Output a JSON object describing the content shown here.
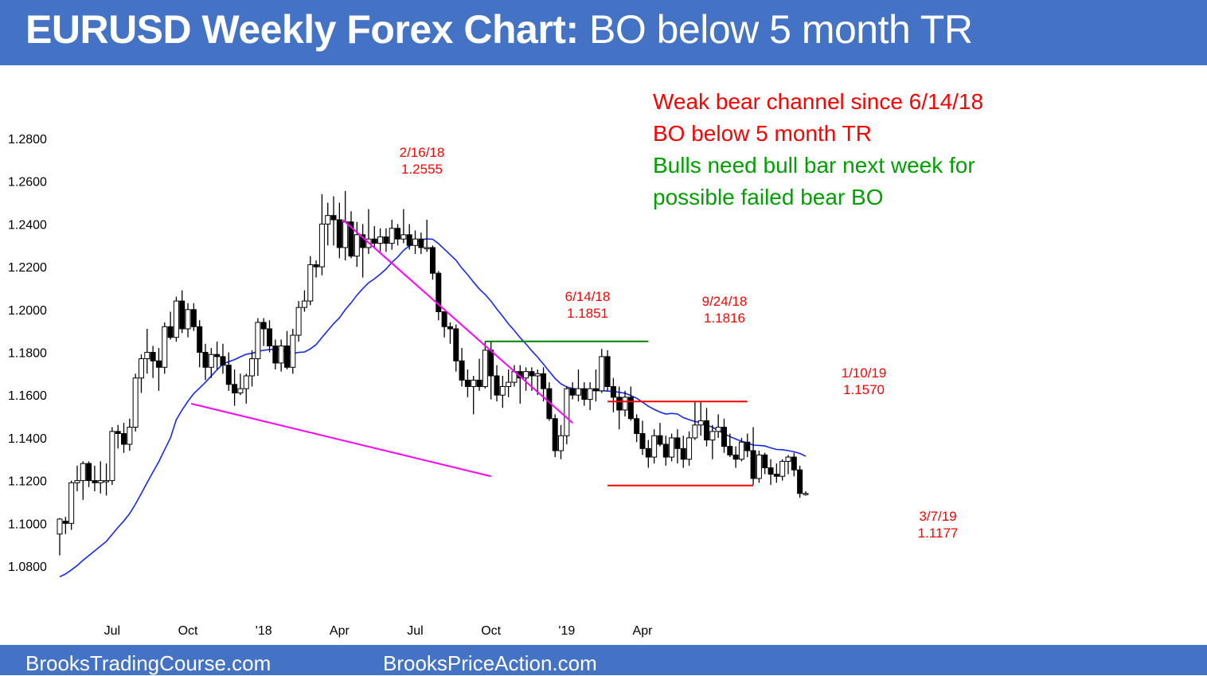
{
  "header": {
    "title_bold": "EURUSD Weekly Forex Chart:",
    "title_rest": " BO below 5 month TR"
  },
  "footer": {
    "left": "BrooksTradingCourse.com",
    "right": "BrooksPriceAction.com"
  },
  "notes": [
    {
      "text": "Weak bear channel since 6/14/18",
      "color": "#ff0000"
    },
    {
      "text": "BO below 5 month TR",
      "color": "#ff0000"
    },
    {
      "text": "Bulls need bull bar next week for",
      "color": "#00a000"
    },
    {
      "text": "possible failed bear BO",
      "color": "#00a000"
    }
  ],
  "chart_data": {
    "type": "candlestick",
    "title": "EURUSD Weekly Forex Chart",
    "ylim": [
      1.075,
      1.285
    ],
    "y_ticks": [
      "1.0800",
      "1.1000",
      "1.1200",
      "1.1400",
      "1.1600",
      "1.1800",
      "1.2000",
      "1.2200",
      "1.2400",
      "1.2600",
      "1.2800"
    ],
    "x_ticks": [
      "Jul",
      "Oct",
      "'18",
      "Apr",
      "Jul",
      "Oct",
      "'19",
      "Apr"
    ],
    "x_tick_index": [
      9,
      22,
      35,
      48,
      61,
      74,
      87,
      100
    ],
    "candles": [
      [
        1.095,
        1.1025,
        1.085,
        1.102
      ],
      [
        1.101,
        1.103,
        1.095,
        1.1
      ],
      [
        1.1,
        1.12,
        1.097,
        1.119
      ],
      [
        1.119,
        1.127,
        1.115,
        1.12
      ],
      [
        1.12,
        1.129,
        1.111,
        1.128
      ],
      [
        1.128,
        1.129,
        1.117,
        1.12
      ],
      [
        1.12,
        1.127,
        1.115,
        1.119
      ],
      [
        1.119,
        1.129,
        1.114,
        1.12
      ],
      [
        1.12,
        1.128,
        1.113,
        1.12
      ],
      [
        1.12,
        1.145,
        1.118,
        1.143
      ],
      [
        1.143,
        1.146,
        1.135,
        1.142
      ],
      [
        1.142,
        1.147,
        1.133,
        1.137
      ],
      [
        1.137,
        1.149,
        1.134,
        1.145
      ],
      [
        1.145,
        1.17,
        1.143,
        1.168
      ],
      [
        1.168,
        1.179,
        1.161,
        1.177
      ],
      [
        1.177,
        1.191,
        1.17,
        1.18
      ],
      [
        1.18,
        1.183,
        1.168,
        1.176
      ],
      [
        1.176,
        1.182,
        1.162,
        1.173
      ],
      [
        1.173,
        1.194,
        1.17,
        1.192
      ],
      [
        1.192,
        1.199,
        1.186,
        1.187
      ],
      [
        1.187,
        1.206,
        1.185,
        1.204
      ],
      [
        1.204,
        1.209,
        1.189,
        1.191
      ],
      [
        1.191,
        1.203,
        1.187,
        1.2
      ],
      [
        1.2,
        1.203,
        1.19,
        1.192
      ],
      [
        1.192,
        1.195,
        1.173,
        1.18
      ],
      [
        1.18,
        1.184,
        1.167,
        1.173
      ],
      [
        1.173,
        1.182,
        1.168,
        1.179
      ],
      [
        1.179,
        1.185,
        1.172,
        1.178
      ],
      [
        1.178,
        1.184,
        1.17,
        1.174
      ],
      [
        1.174,
        1.18,
        1.162,
        1.165
      ],
      [
        1.165,
        1.172,
        1.155,
        1.161
      ],
      [
        1.161,
        1.17,
        1.16,
        1.163
      ],
      [
        1.163,
        1.17,
        1.156,
        1.169
      ],
      [
        1.169,
        1.181,
        1.164,
        1.177
      ],
      [
        1.177,
        1.196,
        1.169,
        1.194
      ],
      [
        1.194,
        1.196,
        1.183,
        1.191
      ],
      [
        1.191,
        1.195,
        1.18,
        1.183
      ],
      [
        1.183,
        1.186,
        1.172,
        1.175
      ],
      [
        1.175,
        1.186,
        1.171,
        1.183
      ],
      [
        1.183,
        1.19,
        1.172,
        1.173
      ],
      [
        1.173,
        1.191,
        1.17,
        1.188
      ],
      [
        1.188,
        1.204,
        1.185,
        1.201
      ],
      [
        1.201,
        1.209,
        1.199,
        1.204
      ],
      [
        1.204,
        1.225,
        1.202,
        1.221
      ],
      [
        1.221,
        1.223,
        1.215,
        1.22
      ],
      [
        1.22,
        1.254,
        1.216,
        1.24
      ],
      [
        1.24,
        1.25,
        1.23,
        1.244
      ],
      [
        1.244,
        1.253,
        1.23,
        1.242
      ],
      [
        1.242,
        1.25,
        1.224,
        1.229
      ],
      [
        1.229,
        1.2555,
        1.223,
        1.241
      ],
      [
        1.241,
        1.246,
        1.224,
        1.225
      ],
      [
        1.225,
        1.241,
        1.22,
        1.235
      ],
      [
        1.235,
        1.24,
        1.215,
        1.229
      ],
      [
        1.229,
        1.247,
        1.226,
        1.233
      ],
      [
        1.233,
        1.239,
        1.229,
        1.231
      ],
      [
        1.231,
        1.238,
        1.227,
        1.234
      ],
      [
        1.234,
        1.238,
        1.227,
        1.231
      ],
      [
        1.231,
        1.242,
        1.228,
        1.238
      ],
      [
        1.238,
        1.24,
        1.23,
        1.233
      ],
      [
        1.233,
        1.247,
        1.231,
        1.235
      ],
      [
        1.235,
        1.24,
        1.228,
        1.23
      ],
      [
        1.23,
        1.237,
        1.226,
        1.233
      ],
      [
        1.233,
        1.236,
        1.226,
        1.229
      ],
      [
        1.229,
        1.242,
        1.227,
        1.229
      ],
      [
        1.229,
        1.23,
        1.214,
        1.217
      ],
      [
        1.217,
        1.218,
        1.195,
        1.199
      ],
      [
        1.199,
        1.199,
        1.187,
        1.192
      ],
      [
        1.192,
        1.194,
        1.184,
        1.191
      ],
      [
        1.191,
        1.193,
        1.171,
        1.176
      ],
      [
        1.176,
        1.182,
        1.164,
        1.167
      ],
      [
        1.167,
        1.172,
        1.159,
        1.164
      ],
      [
        1.164,
        1.169,
        1.151,
        1.167
      ],
      [
        1.167,
        1.177,
        1.162,
        1.164
      ],
      [
        1.164,
        1.1851,
        1.163,
        1.181
      ],
      [
        1.181,
        1.185,
        1.158,
        1.169
      ],
      [
        1.169,
        1.174,
        1.157,
        1.16
      ],
      [
        1.16,
        1.169,
        1.154,
        1.164
      ],
      [
        1.164,
        1.172,
        1.159,
        1.166
      ],
      [
        1.166,
        1.174,
        1.164,
        1.171
      ],
      [
        1.171,
        1.174,
        1.156,
        1.168
      ],
      [
        1.168,
        1.173,
        1.162,
        1.171
      ],
      [
        1.171,
        1.173,
        1.162,
        1.169
      ],
      [
        1.169,
        1.172,
        1.16,
        1.17
      ],
      [
        1.17,
        1.173,
        1.157,
        1.163
      ],
      [
        1.163,
        1.166,
        1.148,
        1.149
      ],
      [
        1.149,
        1.151,
        1.131,
        1.134
      ],
      [
        1.134,
        1.146,
        1.13,
        1.141
      ],
      [
        1.141,
        1.164,
        1.137,
        1.163
      ],
      [
        1.163,
        1.166,
        1.158,
        1.16
      ],
      [
        1.16,
        1.172,
        1.157,
        1.163
      ],
      [
        1.163,
        1.166,
        1.155,
        1.158
      ],
      [
        1.158,
        1.166,
        1.153,
        1.163
      ],
      [
        1.163,
        1.172,
        1.157,
        1.162
      ],
      [
        1.162,
        1.1816,
        1.161,
        1.178
      ],
      [
        1.178,
        1.181,
        1.162,
        1.164
      ],
      [
        1.164,
        1.168,
        1.152,
        1.159
      ],
      [
        1.159,
        1.164,
        1.144,
        1.153
      ],
      [
        1.153,
        1.162,
        1.15,
        1.159
      ],
      [
        1.159,
        1.164,
        1.148,
        1.149
      ],
      [
        1.149,
        1.151,
        1.138,
        1.142
      ],
      [
        1.142,
        1.148,
        1.132,
        1.135
      ],
      [
        1.135,
        1.139,
        1.126,
        1.131
      ],
      [
        1.131,
        1.144,
        1.128,
        1.141
      ],
      [
        1.141,
        1.147,
        1.136,
        1.137
      ],
      [
        1.137,
        1.141,
        1.127,
        1.131
      ],
      [
        1.131,
        1.142,
        1.129,
        1.14
      ],
      [
        1.14,
        1.144,
        1.128,
        1.135
      ],
      [
        1.135,
        1.141,
        1.126,
        1.13
      ],
      [
        1.13,
        1.143,
        1.127,
        1.14
      ],
      [
        1.14,
        1.157,
        1.139,
        1.146
      ],
      [
        1.146,
        1.157,
        1.141,
        1.148
      ],
      [
        1.148,
        1.154,
        1.136,
        1.139
      ],
      [
        1.139,
        1.146,
        1.13,
        1.143
      ],
      [
        1.143,
        1.151,
        1.14,
        1.145
      ],
      [
        1.145,
        1.149,
        1.133,
        1.136
      ],
      [
        1.136,
        1.142,
        1.131,
        1.132
      ],
      [
        1.132,
        1.136,
        1.126,
        1.13
      ],
      [
        1.13,
        1.14,
        1.129,
        1.138
      ],
      [
        1.138,
        1.142,
        1.131,
        1.134
      ],
      [
        1.134,
        1.145,
        1.118,
        1.121
      ],
      [
        1.121,
        1.134,
        1.119,
        1.132
      ],
      [
        1.132,
        1.133,
        1.123,
        1.126
      ],
      [
        1.126,
        1.13,
        1.118,
        1.123
      ],
      [
        1.123,
        1.128,
        1.119,
        1.122
      ],
      [
        1.122,
        1.13,
        1.12,
        1.129
      ],
      [
        1.129,
        1.132,
        1.123,
        1.131
      ],
      [
        1.131,
        1.133,
        1.122,
        1.125
      ],
      [
        1.125,
        1.127,
        1.112,
        1.114
      ],
      [
        1.114,
        1.115,
        1.113,
        1.114
      ]
    ],
    "moving_average": {
      "period": 20,
      "color": "#1428f0"
    },
    "levels": [
      {
        "name": "6/14/18 high",
        "value": 1.1851,
        "color": "#008000"
      },
      {
        "name": "1/10/19 high",
        "value": 1.157,
        "color": "#ff0000"
      },
      {
        "name": "3/7/19 low",
        "value": 1.1177,
        "color": "#ff0000"
      }
    ],
    "trendlines": [
      {
        "from": [
          48,
          1.242
        ],
        "to": [
          88,
          1.147
        ],
        "color": "#ff00ff"
      },
      {
        "from": [
          22,
          1.156
        ],
        "to": [
          74,
          1.122
        ],
        "color": "#ff00ff"
      }
    ],
    "annotations": [
      {
        "lines": [
          "2/16/18",
          "1.2555"
        ],
        "color": "#ff0000"
      },
      {
        "lines": [
          "6/14/18",
          "1.1851"
        ],
        "color": "#ff0000"
      },
      {
        "lines": [
          "9/24/18",
          "1.1816"
        ],
        "color": "#ff0000"
      },
      {
        "lines": [
          "1/10/19",
          "1.1570"
        ],
        "color": "#ff0000"
      },
      {
        "lines": [
          "3/7/19",
          "1.1177"
        ],
        "color": "#ff0000"
      }
    ]
  }
}
